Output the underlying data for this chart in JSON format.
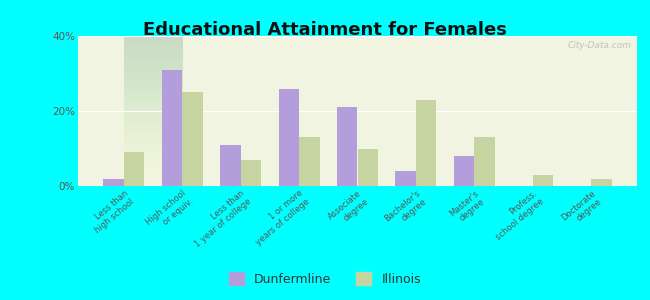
{
  "title": "Educational Attainment for Females",
  "categories": [
    "Less than\nhigh school",
    "High school\nor equiv.",
    "Less than\n1 year of college",
    "1 or more\nyears of college",
    "Associate\ndegree",
    "Bachelor's\ndegree",
    "Master's\ndegree",
    "Profess.\nschool degree",
    "Doctorate\ndegree"
  ],
  "dunfermline": [
    2.0,
    31.0,
    11.0,
    26.0,
    21.0,
    4.0,
    8.0,
    0.0,
    0.0
  ],
  "illinois": [
    9.0,
    25.0,
    7.0,
    13.0,
    10.0,
    23.0,
    13.0,
    3.0,
    2.0
  ],
  "dunfermline_color": "#b39ddb",
  "illinois_color": "#c5d4a0",
  "fig_bg_color": "#00ffff",
  "plot_bg_color": "#f0f4e0",
  "ylim": [
    0,
    40
  ],
  "yticks": [
    0,
    20,
    40
  ],
  "ytick_labels": [
    "0%",
    "20%",
    "40%"
  ],
  "legend_dunfermline": "Dunfermline",
  "legend_illinois": "Illinois",
  "bar_width": 0.35,
  "title_fontsize": 13,
  "tick_fontsize": 6.0,
  "legend_fontsize": 9,
  "watermark": "City-Data.com"
}
